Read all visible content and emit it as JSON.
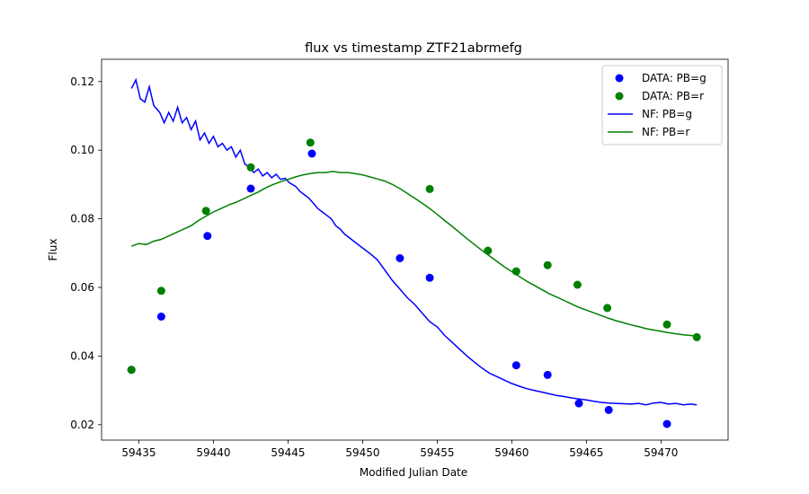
{
  "chart_data": {
    "type": "scatter+line",
    "title": "flux vs timestamp ZTF21abrmefg",
    "xlabel": "Modified Julian Date",
    "ylabel": "Flux",
    "xlim": [
      59432.5,
      59474.5
    ],
    "ylim": [
      0.0155,
      0.1265
    ],
    "xticks": [
      59435,
      59440,
      59445,
      59450,
      59455,
      59460,
      59465,
      59470
    ],
    "yticks": [
      0.02,
      0.04,
      0.06,
      0.08,
      0.1,
      0.12
    ],
    "ytick_labels": [
      "0.02",
      "0.04",
      "0.06",
      "0.08",
      "0.10",
      "0.12"
    ],
    "grid": false,
    "legend_position": "top-right",
    "scatter_series": [
      {
        "name": "DATA: PB=g",
        "color": "#0000ff",
        "points": [
          [
            59434.5,
            0.036
          ],
          [
            59436.5,
            0.0515
          ],
          [
            59439.6,
            0.075
          ],
          [
            59442.5,
            0.0888
          ],
          [
            59446.6,
            0.099
          ],
          [
            59452.5,
            0.0685
          ],
          [
            59454.5,
            0.0628
          ],
          [
            59460.3,
            0.0373
          ],
          [
            59462.4,
            0.0345
          ],
          [
            59464.5,
            0.0262
          ],
          [
            59466.5,
            0.0243
          ],
          [
            59470.4,
            0.0202
          ]
        ]
      },
      {
        "name": "DATA: PB=r",
        "color": "#008000",
        "points": [
          [
            59434.5,
            0.036
          ],
          [
            59436.5,
            0.059
          ],
          [
            59439.5,
            0.0823
          ],
          [
            59442.5,
            0.095
          ],
          [
            59446.5,
            0.1022
          ],
          [
            59454.5,
            0.0887
          ],
          [
            59458.4,
            0.0707
          ],
          [
            59460.3,
            0.0647
          ],
          [
            59462.4,
            0.0665
          ],
          [
            59464.4,
            0.0608
          ],
          [
            59466.4,
            0.054
          ],
          [
            59470.4,
            0.0492
          ],
          [
            59472.4,
            0.0455
          ]
        ]
      }
    ],
    "line_series": [
      {
        "name": "NF: PB=g",
        "color": "#0000ff",
        "x": [
          59434.5,
          59434.8,
          59435.1,
          59435.4,
          59435.7,
          59436.0,
          59436.4,
          59436.7,
          59437.0,
          59437.3,
          59437.6,
          59437.9,
          59438.2,
          59438.5,
          59438.8,
          59439.1,
          59439.4,
          59439.7,
          59440.0,
          59440.3,
          59440.6,
          59440.9,
          59441.2,
          59441.5,
          59441.8,
          59442.1,
          59442.4,
          59442.7,
          59443.0,
          59443.3,
          59443.6,
          59443.9,
          59444.2,
          59444.5,
          59444.8,
          59445.1,
          59445.5,
          59445.8,
          59446.1,
          59446.4,
          59446.7,
          59447.0,
          59447.3,
          59447.6,
          59447.9,
          59448.2,
          59448.5,
          59448.8,
          59449.1,
          59449.4,
          59449.7,
          59450.0,
          59450.3,
          59450.6,
          59451.0,
          59451.5,
          59452.0,
          59452.5,
          59453.0,
          59453.5,
          59454.0,
          59454.5,
          59455.0,
          59455.5,
          59456.0,
          59456.5,
          59457.0,
          59457.5,
          59458.0,
          59458.5,
          59459.0,
          59459.5,
          59460.0,
          59460.5,
          59461.0,
          59461.5,
          59462.0,
          59462.5,
          59463.0,
          59463.5,
          59464.0,
          59464.5,
          59465.0,
          59465.5,
          59466.0,
          59466.5,
          59467.0,
          59467.5,
          59468.0,
          59468.5,
          59469.0,
          59469.5,
          59470.0,
          59470.5,
          59471.0,
          59471.5,
          59472.0,
          59472.4
        ],
        "y": [
          0.118,
          0.1205,
          0.115,
          0.114,
          0.1185,
          0.113,
          0.111,
          0.108,
          0.111,
          0.1085,
          0.1125,
          0.108,
          0.1095,
          0.106,
          0.1085,
          0.103,
          0.105,
          0.102,
          0.104,
          0.101,
          0.102,
          0.1,
          0.101,
          0.098,
          0.1,
          0.096,
          0.095,
          0.0935,
          0.0945,
          0.0925,
          0.0935,
          0.092,
          0.093,
          0.0915,
          0.0918,
          0.0905,
          0.0895,
          0.088,
          0.087,
          0.086,
          0.0845,
          0.083,
          0.082,
          0.081,
          0.08,
          0.078,
          0.077,
          0.0755,
          0.0745,
          0.0735,
          0.0725,
          0.0715,
          0.0705,
          0.0695,
          0.068,
          0.065,
          0.062,
          0.0595,
          0.057,
          0.055,
          0.0525,
          0.05,
          0.0485,
          0.046,
          0.044,
          0.042,
          0.04,
          0.0382,
          0.0365,
          0.035,
          0.034,
          0.033,
          0.032,
          0.0312,
          0.0305,
          0.03,
          0.0295,
          0.029,
          0.0285,
          0.0282,
          0.0278,
          0.0275,
          0.0272,
          0.0268,
          0.0265,
          0.0263,
          0.0262,
          0.0261,
          0.026,
          0.0262,
          0.0258,
          0.0263,
          0.0265,
          0.026,
          0.0262,
          0.0258,
          0.026,
          0.0258
        ]
      },
      {
        "name": "NF: PB=r",
        "color": "#008000",
        "x": [
          59434.5,
          59435.0,
          59435.5,
          59436.0,
          59436.5,
          59437.0,
          59437.5,
          59438.0,
          59438.5,
          59439.0,
          59439.5,
          59440.0,
          59440.5,
          59441.0,
          59441.5,
          59442.0,
          59442.5,
          59443.0,
          59443.5,
          59444.0,
          59444.5,
          59445.0,
          59445.5,
          59446.0,
          59446.5,
          59447.0,
          59447.5,
          59448.0,
          59448.5,
          59449.0,
          59449.5,
          59450.0,
          59450.5,
          59451.0,
          59451.5,
          59452.0,
          59452.5,
          59453.0,
          59453.5,
          59454.0,
          59454.5,
          59455.0,
          59455.5,
          59456.0,
          59456.5,
          59457.0,
          59457.5,
          59458.0,
          59458.5,
          59459.0,
          59459.5,
          59460.0,
          59460.5,
          59461.0,
          59461.5,
          59462.0,
          59462.5,
          59463.0,
          59463.5,
          59464.0,
          59464.5,
          59465.0,
          59465.5,
          59466.0,
          59466.5,
          59467.0,
          59467.5,
          59468.0,
          59468.5,
          59469.0,
          59469.5,
          59470.0,
          59470.5,
          59471.0,
          59471.5,
          59472.0,
          59472.4
        ],
        "y": [
          0.072,
          0.0728,
          0.0725,
          0.0735,
          0.074,
          0.075,
          0.076,
          0.077,
          0.078,
          0.0795,
          0.0808,
          0.082,
          0.083,
          0.084,
          0.0848,
          0.0858,
          0.0868,
          0.0878,
          0.089,
          0.09,
          0.0908,
          0.0915,
          0.0922,
          0.0928,
          0.0932,
          0.0935,
          0.0935,
          0.0938,
          0.0935,
          0.0935,
          0.0932,
          0.0928,
          0.0922,
          0.0916,
          0.091,
          0.09,
          0.0888,
          0.0874,
          0.086,
          0.0845,
          0.083,
          0.0813,
          0.0795,
          0.0778,
          0.076,
          0.0742,
          0.0725,
          0.0708,
          0.0692,
          0.0676,
          0.066,
          0.0646,
          0.0632,
          0.0618,
          0.0606,
          0.0594,
          0.0582,
          0.0572,
          0.0562,
          0.0552,
          0.0542,
          0.0534,
          0.0526,
          0.0518,
          0.051,
          0.0503,
          0.0497,
          0.0491,
          0.0486,
          0.048,
          0.0476,
          0.0472,
          0.0468,
          0.0465,
          0.0462,
          0.046,
          0.0458
        ]
      }
    ]
  }
}
